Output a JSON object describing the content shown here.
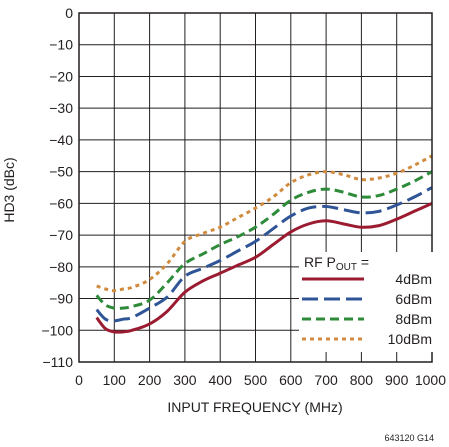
{
  "chart_data": {
    "type": "line",
    "title": "",
    "xlabel": "INPUT FREQUENCY (MHz)",
    "ylabel": "HD3 (dBc)",
    "xlim": [
      0,
      1000
    ],
    "ylim": [
      -110,
      0
    ],
    "x_ticks": [
      0,
      100,
      200,
      300,
      400,
      500,
      600,
      700,
      800,
      900,
      1000
    ],
    "x_tick_labels": [
      "0",
      "100",
      "200",
      "300",
      "400",
      "500",
      "600",
      "700",
      "800",
      "900",
      "1000"
    ],
    "y_ticks": [
      0,
      -10,
      -20,
      -30,
      -40,
      -50,
      -60,
      -70,
      -80,
      -90,
      -100,
      -110
    ],
    "y_tick_labels": [
      "0",
      "−10",
      "−20",
      "−30",
      "−40",
      "−50",
      "−60",
      "−70",
      "−80",
      "−90",
      "−100",
      "−110"
    ],
    "grid": true,
    "legend": {
      "title_main": "RF P",
      "title_sub": "OUT",
      "title_suffix": " =",
      "placement": "bottom-right"
    },
    "series": [
      {
        "name": "4dBm",
        "color": "#9b1b30",
        "dash": "solid",
        "x": [
          50,
          75,
          100,
          125,
          150,
          200,
          250,
          300,
          350,
          400,
          450,
          500,
          550,
          600,
          650,
          700,
          750,
          800,
          850,
          900,
          950,
          1000
        ],
        "y": [
          -96,
          -99.5,
          -100.5,
          -100.5,
          -100,
          -98,
          -94,
          -88,
          -84.5,
          -82,
          -79.5,
          -77,
          -73,
          -69,
          -66.5,
          -65.5,
          -66.5,
          -67.5,
          -67,
          -65,
          -62.5,
          -60
        ]
      },
      {
        "name": "6dBm",
        "color": "#2f5597",
        "dash": "long",
        "x": [
          50,
          75,
          100,
          125,
          150,
          200,
          250,
          300,
          350,
          400,
          450,
          500,
          550,
          600,
          650,
          700,
          750,
          800,
          850,
          900,
          950,
          1000
        ],
        "y": [
          -93.5,
          -96.5,
          -97,
          -96.5,
          -96,
          -93,
          -89.5,
          -83,
          -80.5,
          -78,
          -75,
          -72,
          -68,
          -64,
          -61.5,
          -61,
          -62,
          -63,
          -62.5,
          -60.5,
          -58,
          -55
        ]
      },
      {
        "name": "8dBm",
        "color": "#2e8b3a",
        "dash": "medium",
        "x": [
          50,
          75,
          100,
          125,
          150,
          200,
          250,
          300,
          350,
          400,
          450,
          500,
          550,
          600,
          650,
          700,
          750,
          800,
          850,
          900,
          950,
          1000
        ],
        "y": [
          -89,
          -92,
          -93,
          -93,
          -92.5,
          -90.5,
          -85,
          -79,
          -76,
          -73,
          -70.5,
          -67.5,
          -63.5,
          -59,
          -56.5,
          -55.5,
          -56.5,
          -58,
          -57.5,
          -55.5,
          -53,
          -50
        ]
      },
      {
        "name": "10dBm",
        "color": "#d08b3e",
        "dash": "short",
        "x": [
          50,
          75,
          100,
          125,
          150,
          200,
          250,
          300,
          350,
          400,
          450,
          500,
          550,
          600,
          650,
          700,
          750,
          800,
          850,
          900,
          950,
          1000
        ],
        "y": [
          -86,
          -87,
          -87.5,
          -87,
          -86.5,
          -84,
          -79,
          -72,
          -69.5,
          -67.5,
          -64.5,
          -61.5,
          -58,
          -53.5,
          -51,
          -50,
          -51,
          -52.5,
          -52,
          -50.5,
          -48,
          -45
        ]
      }
    ]
  },
  "figure_id": "643120 G14"
}
